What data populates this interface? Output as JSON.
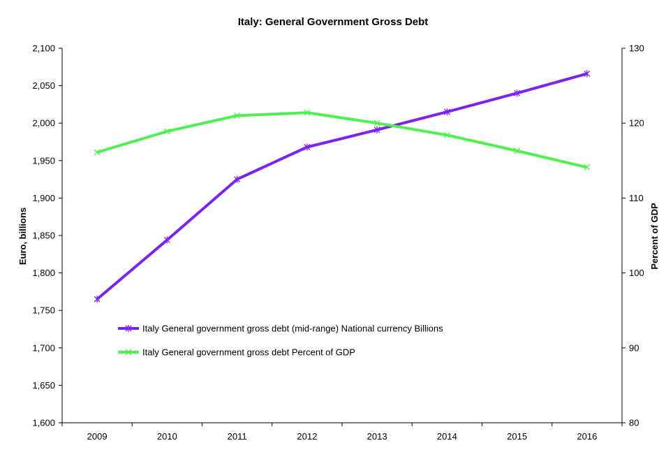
{
  "chart_data": {
    "type": "line",
    "title": "Italy: General Government Gross Debt",
    "xlabel": "",
    "ylabel": "Euro, billions",
    "y2label": "Percent of GDP",
    "categories": [
      "2009",
      "2010",
      "2011",
      "2012",
      "2013",
      "2014",
      "2015",
      "2016"
    ],
    "ylim": [
      1600,
      2100
    ],
    "y2lim": [
      80,
      130
    ],
    "yticks": [
      "1,600",
      "1,650",
      "1,700",
      "1,750",
      "1,800",
      "1,850",
      "1,900",
      "1,950",
      "2,000",
      "2,050",
      "2,100"
    ],
    "y2ticks": [
      "80",
      "90",
      "100",
      "110",
      "120",
      "130"
    ],
    "legend_position": "lower-left inside",
    "grid": false,
    "series": [
      {
        "name": "Italy General government gross debt (mid-range) National currency Billions",
        "axis": "left",
        "color": "#7b24f2",
        "marker": "asterisk",
        "values": [
          1765,
          1844,
          1925,
          1968,
          1991,
          2015,
          2040,
          2066
        ]
      },
      {
        "name": "Italy General government gross debt Percent of GDP",
        "axis": "right",
        "color": "#4ff04f",
        "marker": "x",
        "values": [
          116.1,
          118.9,
          121.0,
          121.4,
          120.0,
          118.4,
          116.3,
          114.1
        ]
      }
    ]
  }
}
